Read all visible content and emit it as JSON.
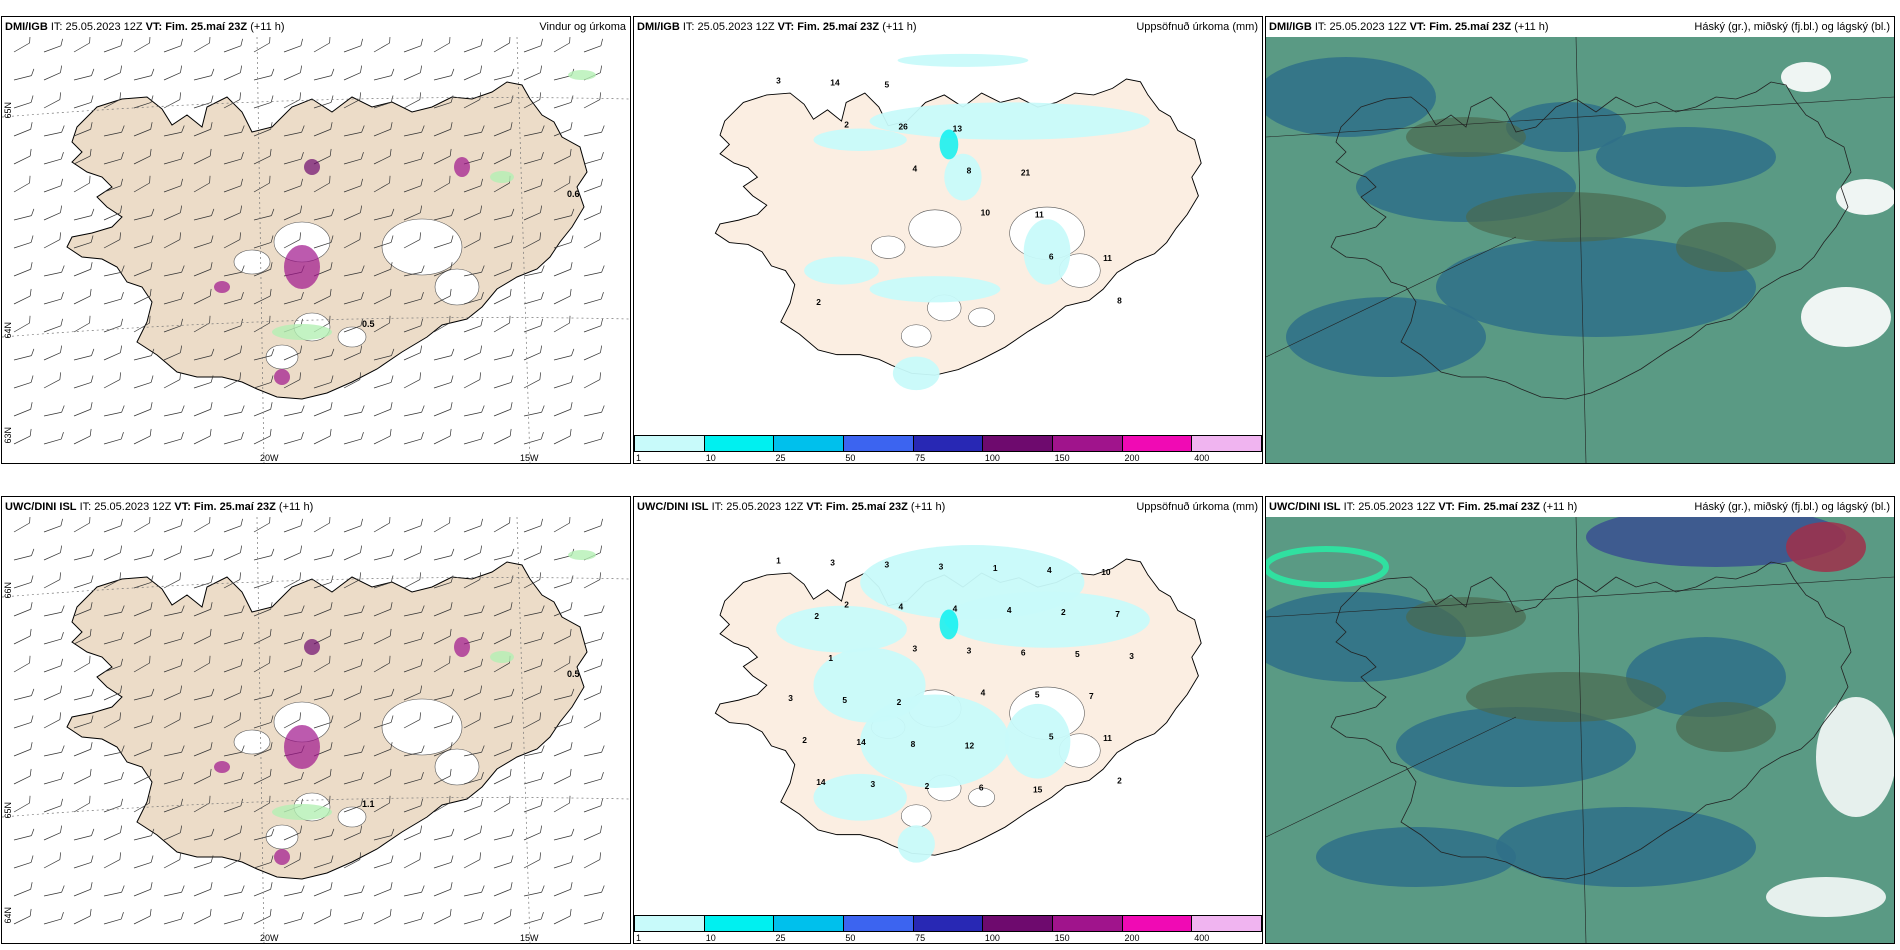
{
  "panels": [
    {
      "model": "DMI/IGB",
      "it": "IT: 25.05.2023 12Z",
      "vtl": "VT:",
      "vt": "Fim. 25.maí 23Z",
      "lead": "(+11 h)",
      "right": "Vindur og úrkoma",
      "type": "wind",
      "lon": [
        "20W",
        "15W"
      ],
      "lat": [
        "65N",
        "64N",
        "63N"
      ],
      "values": [
        "0.6",
        "0.5"
      ]
    },
    {
      "model": "DMI/IGB",
      "it": "IT: 25.05.2023 12Z",
      "vtl": "VT:",
      "vt": "Fim. 25.maí 23Z",
      "lead": "(+11 h)",
      "right": "Uppsöfnuð úrkoma (mm)",
      "type": "precip",
      "values": [
        "3",
        "2",
        "4",
        "10",
        "6",
        "8",
        "14",
        "26",
        "8",
        "11",
        "11",
        "2",
        "5",
        "13",
        "21"
      ]
    },
    {
      "model": "DMI/IGB",
      "it": "IT: 25.05.2023 12Z",
      "vtl": "VT:",
      "vt": "Fim. 25.maí 23Z",
      "lead": "(+11 h)",
      "right": "Háský (gr.), miðský (fj.bl.) og lágský (bl.)",
      "type": "cloud"
    },
    {
      "model": "UWC/DINI ISL",
      "it": "IT: 25.05.2023 12Z",
      "vtl": "VT:",
      "vt": "Fim. 25.maí 23Z",
      "lead": "(+11 h)",
      "right": "",
      "type": "wind",
      "lon": [
        "20W",
        "15W"
      ],
      "lat": [
        "66N",
        "65N",
        "64N"
      ],
      "values": [
        "0.5",
        "1.1"
      ]
    },
    {
      "model": "UWC/DINI ISL",
      "it": "IT: 25.05.2023 12Z",
      "vtl": "VT:",
      "vt": "Fim. 25.maí 23Z",
      "lead": "(+11 h)",
      "right": "Uppsöfnuð úrkoma (mm)",
      "type": "precip",
      "values": [
        "1",
        "2",
        "3",
        "4",
        "5",
        "2",
        "3",
        "4",
        "3",
        "5",
        "11",
        "14",
        "3",
        "4",
        "6",
        "7",
        "2",
        "3",
        "3",
        "4",
        "5",
        "3",
        "14",
        "2",
        "1",
        "2",
        "3",
        "5",
        "8",
        "6",
        "4",
        "7",
        "1",
        "2",
        "12",
        "15",
        "10",
        "2"
      ]
    },
    {
      "model": "UWC/DINI ISL",
      "it": "IT: 25.05.2023 12Z",
      "vtl": "VT:",
      "vt": "Fim. 25.maí 23Z",
      "lead": "(+11 h)",
      "right": "Háský (gr.), miðský (fj.bl.) og lágský (bl.)",
      "type": "cloud"
    }
  ],
  "colorbar": {
    "colors": [
      "#c8fafa",
      "#00f0f0",
      "#00c0ec",
      "#3c64f0",
      "#2828b4",
      "#6e0a6e",
      "#a0148c",
      "#f00ab4",
      "#f0b4f0"
    ],
    "ticks": [
      "1",
      "10",
      "25",
      "50",
      "75",
      "100",
      "150",
      "200",
      "400"
    ]
  },
  "colors": {
    "land": "#ecdcc8",
    "precip_light": "#c8fafa",
    "cloud_high": "#5a9a84",
    "cloud_mid": "#2f7088",
    "cloud_low": "#3a5090"
  }
}
